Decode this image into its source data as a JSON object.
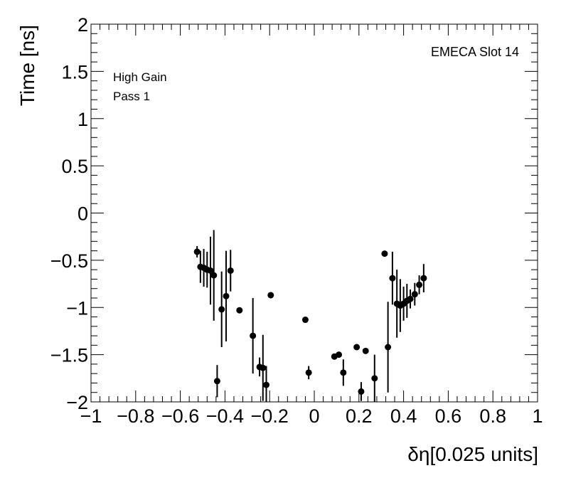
{
  "chart_data": {
    "type": "scatter",
    "xlabel": "δη[0.025 units]",
    "ylabel": "Time [ns]",
    "xlim": [
      -1,
      1
    ],
    "ylim": [
      -2,
      2
    ],
    "x_ticks": [
      "−1",
      "−0.8",
      "−0.6",
      "−0.4",
      "−0.2",
      "0",
      "0.2",
      "0.4",
      "0.6",
      "0.8",
      "1"
    ],
    "y_ticks": [
      "−2",
      "−1.5",
      "−1",
      "−0.5",
      "0",
      "0.5",
      "1",
      "1.5",
      "2"
    ],
    "annotations": [
      "High Gain",
      "Pass 1"
    ],
    "corner_label": "EMECA Slot 14",
    "grid": false,
    "marker_color": "#000000",
    "points": [
      {
        "x": -0.525,
        "y": -0.41,
        "err": 0.06
      },
      {
        "x": -0.51,
        "y": -0.57,
        "err": 0.17
      },
      {
        "x": -0.495,
        "y": -0.58,
        "err": 0.2
      },
      {
        "x": -0.48,
        "y": -0.6,
        "err": 0.19
      },
      {
        "x": -0.465,
        "y": -0.61,
        "err": 0.36
      },
      {
        "x": -0.45,
        "y": -0.66,
        "err": 0.48
      },
      {
        "x": -0.435,
        "y": -1.78,
        "err": 0.17
      },
      {
        "x": -0.415,
        "y": -1.02,
        "err": 0.4
      },
      {
        "x": -0.395,
        "y": -0.88,
        "err": 0.48
      },
      {
        "x": -0.375,
        "y": -0.61,
        "err": 0.22
      },
      {
        "x": -0.335,
        "y": -1.03,
        "err": 0.03
      },
      {
        "x": -0.275,
        "y": -1.3,
        "err": 0.4
      },
      {
        "x": -0.245,
        "y": -1.63,
        "err": 0.1
      },
      {
        "x": -0.23,
        "y": -1.64,
        "err": 0.35
      },
      {
        "x": -0.215,
        "y": -1.82,
        "err": 0.2
      },
      {
        "x": -0.195,
        "y": -0.87,
        "err": 0.03
      },
      {
        "x": -0.04,
        "y": -1.13,
        "err": 0.03
      },
      {
        "x": -0.025,
        "y": -1.69,
        "err": 0.07
      },
      {
        "x": 0.09,
        "y": -1.52,
        "err": 0.03
      },
      {
        "x": 0.11,
        "y": -1.5,
        "err": 0.03
      },
      {
        "x": 0.13,
        "y": -1.69,
        "err": 0.14
      },
      {
        "x": 0.19,
        "y": -1.42,
        "err": 0.03
      },
      {
        "x": 0.21,
        "y": -1.89,
        "err": 0.1
      },
      {
        "x": 0.23,
        "y": -1.46,
        "err": 0.03
      },
      {
        "x": 0.27,
        "y": -1.75,
        "err": 0.25
      },
      {
        "x": 0.315,
        "y": -0.43,
        "err": 0.03
      },
      {
        "x": 0.33,
        "y": -1.42,
        "err": 0.48
      },
      {
        "x": 0.35,
        "y": -0.69,
        "err": 0.28
      },
      {
        "x": 0.37,
        "y": -0.96,
        "err": 0.36
      },
      {
        "x": 0.385,
        "y": -0.98,
        "err": 0.28
      },
      {
        "x": 0.4,
        "y": -0.96,
        "err": 0.18
      },
      {
        "x": 0.415,
        "y": -0.93,
        "err": 0.18
      },
      {
        "x": 0.43,
        "y": -0.91,
        "err": 0.1
      },
      {
        "x": 0.45,
        "y": -0.86,
        "err": 0.12
      },
      {
        "x": 0.47,
        "y": -0.76,
        "err": 0.1
      },
      {
        "x": 0.49,
        "y": -0.69,
        "err": 0.15
      }
    ]
  }
}
